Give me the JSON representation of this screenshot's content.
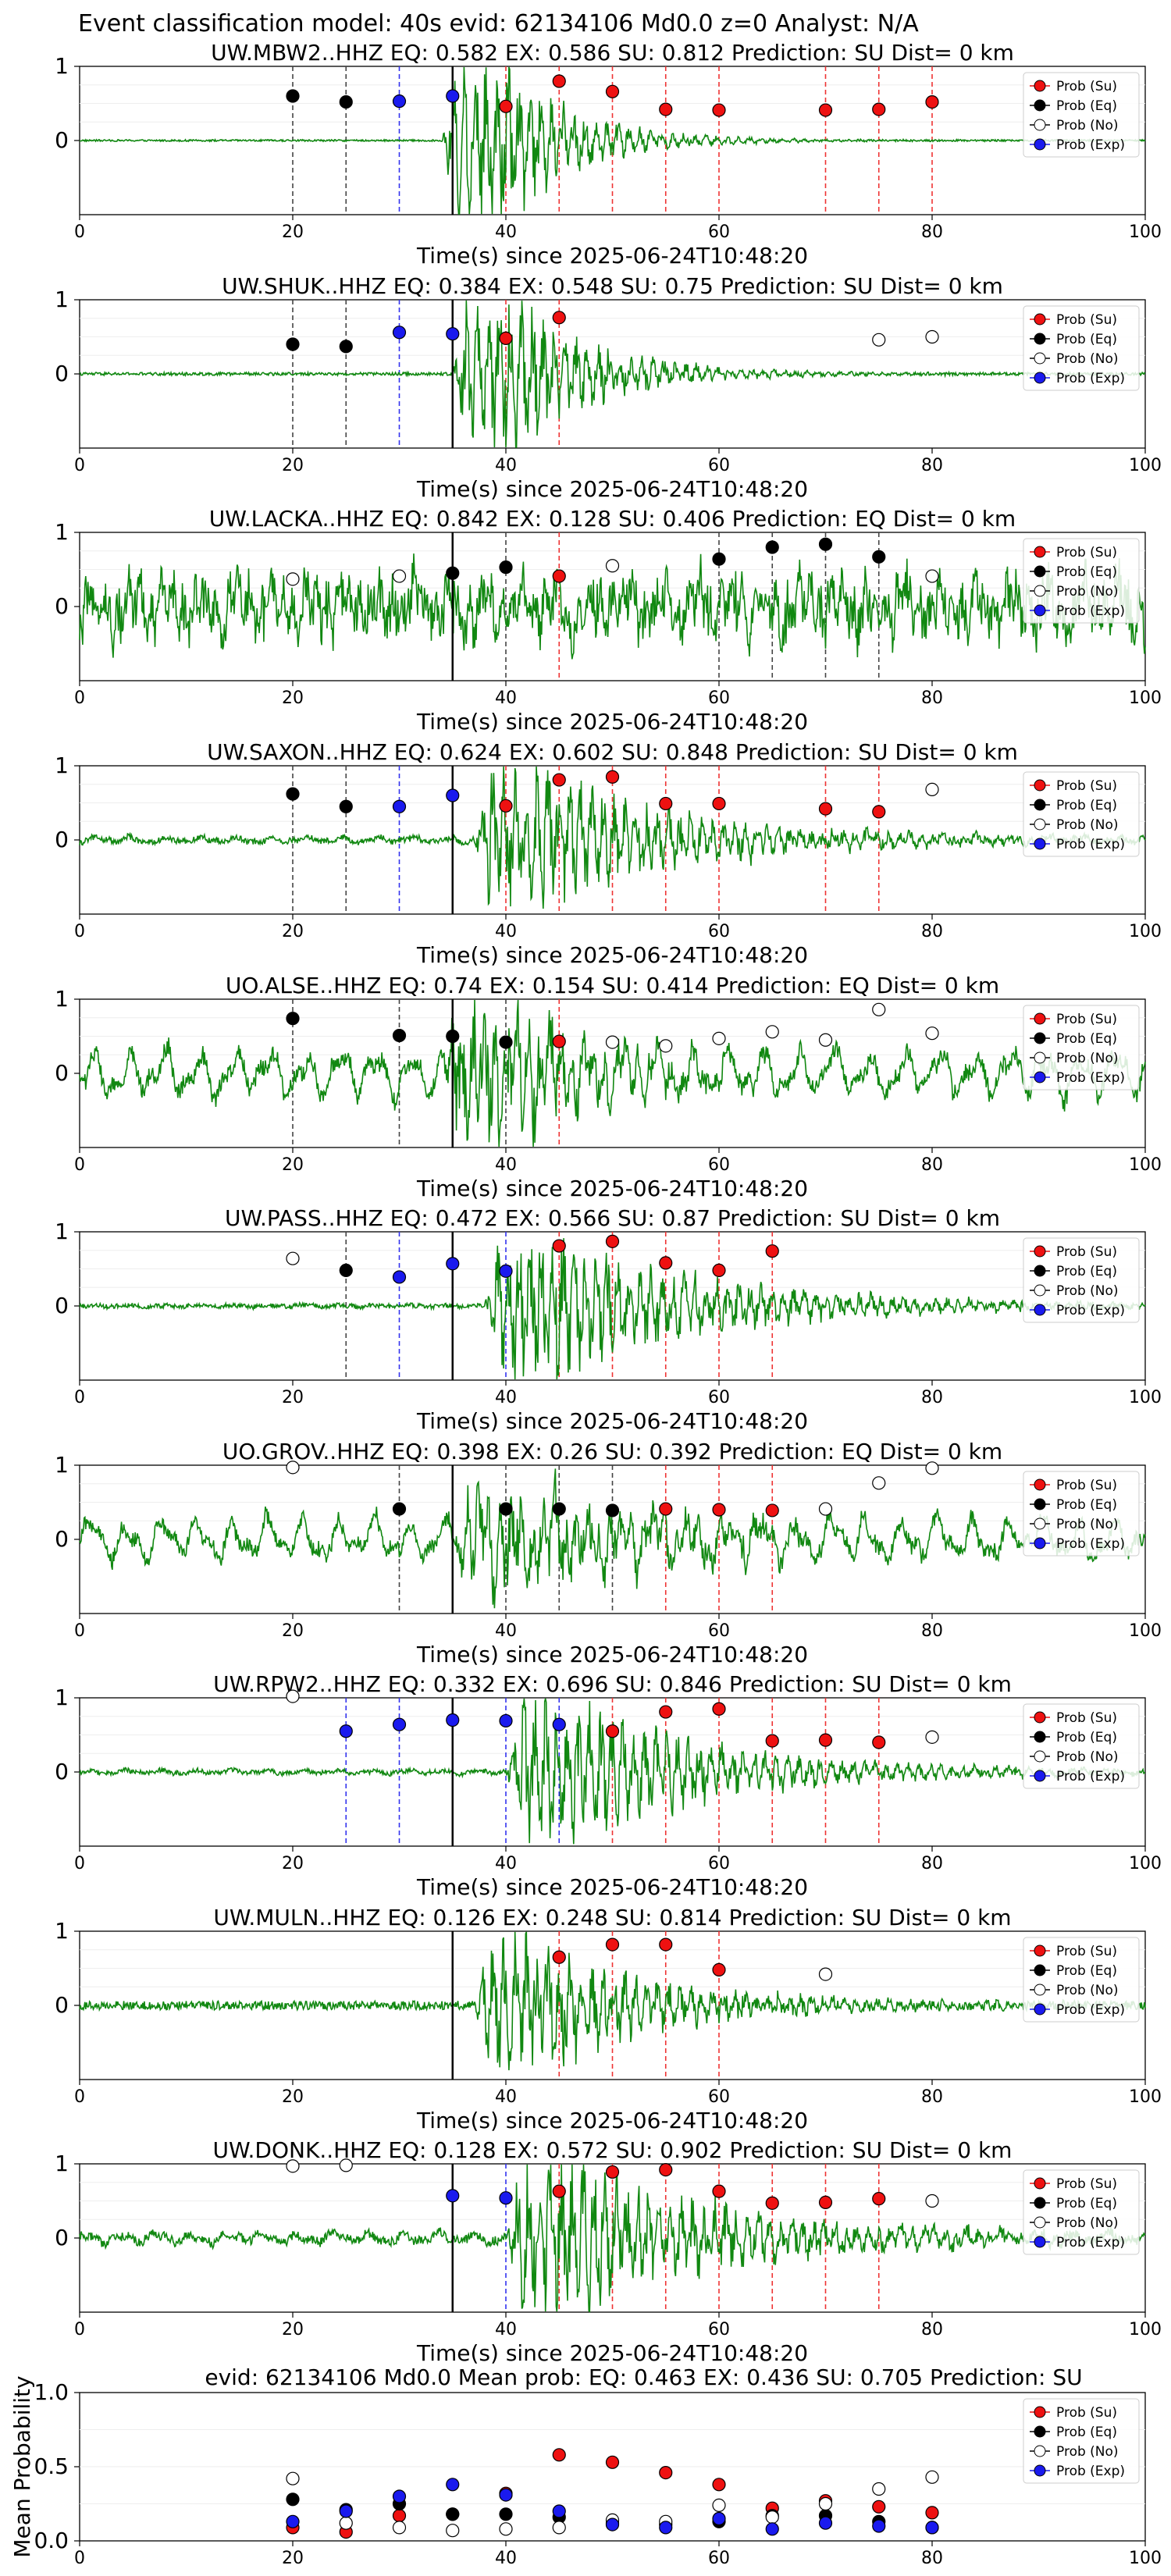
{
  "figure": {
    "title": "Event classification model: 40s evid: 62134106 Md0.0 z=0 Analyst: N/A",
    "legend_labels": [
      "Prob (Su)",
      "Prob (Eq)",
      "Prob (No)",
      "Prob (Exp)"
    ],
    "colors": {
      "su": "#ee1111",
      "eq": "#000000",
      "no": "#ffffff",
      "exp": "#1a1aee",
      "waveform": "#118811",
      "su_line": "#ee3333",
      "eq_line": "#444444",
      "exp_line": "#3333ee",
      "onset_line": "#000000"
    }
  },
  "chart_data": [
    {
      "type": "scatter",
      "station": "UW.MBW2..HHZ",
      "title": "UW.MBW2..HHZ   EQ: 0.582  EX: 0.586  SU: 0.812   Prediction: SU    Dist= 0 km",
      "xlabel": "Time(s) since 2025-06-24T10:48:20",
      "xlim": [
        0,
        100
      ],
      "ylim": [
        -1,
        1
      ],
      "xticks": [
        "0",
        "20",
        "40",
        "60",
        "80",
        "100"
      ],
      "yticks": [
        "1",
        "0"
      ],
      "onset": 35,
      "wave_start": 34,
      "wave_amp": 1.05,
      "noise": 0.012,
      "decay": 7,
      "bg_wave": 0,
      "points": [
        {
          "x": 20,
          "y": 0.6,
          "cls": "eq"
        },
        {
          "x": 25,
          "y": 0.52,
          "cls": "eq"
        },
        {
          "x": 30,
          "y": 0.53,
          "cls": "exp"
        },
        {
          "x": 35,
          "y": 0.6,
          "cls": "exp"
        },
        {
          "x": 40,
          "y": 0.46,
          "cls": "su"
        },
        {
          "x": 45,
          "y": 0.8,
          "cls": "su"
        },
        {
          "x": 50,
          "y": 0.66,
          "cls": "su"
        },
        {
          "x": 55,
          "y": 0.42,
          "cls": "su"
        },
        {
          "x": 60,
          "y": 0.41,
          "cls": "su"
        },
        {
          "x": 70,
          "y": 0.41,
          "cls": "su"
        },
        {
          "x": 75,
          "y": 0.42,
          "cls": "su"
        },
        {
          "x": 80,
          "y": 0.52,
          "cls": "su"
        }
      ]
    },
    {
      "type": "scatter",
      "station": "UW.SHUK..HHZ",
      "title": "UW.SHUK..HHZ   EQ: 0.384  EX: 0.548  SU: 0.75   Prediction: SU    Dist= 0 km",
      "xlabel": "Time(s) since 2025-06-24T10:48:20",
      "xlim": [
        0,
        100
      ],
      "ylim": [
        -1,
        1
      ],
      "xticks": [
        "0",
        "20",
        "40",
        "60",
        "80",
        "100"
      ],
      "yticks": [
        "1",
        "0"
      ],
      "onset": 35,
      "wave_start": 35,
      "wave_amp": 1.0,
      "noise": 0.02,
      "decay": 8,
      "bg_wave": 0,
      "points": [
        {
          "x": 20,
          "y": 0.4,
          "cls": "eq"
        },
        {
          "x": 25,
          "y": 0.37,
          "cls": "eq"
        },
        {
          "x": 30,
          "y": 0.56,
          "cls": "exp"
        },
        {
          "x": 35,
          "y": 0.54,
          "cls": "exp"
        },
        {
          "x": 40,
          "y": 0.48,
          "cls": "su"
        },
        {
          "x": 45,
          "y": 0.76,
          "cls": "su"
        },
        {
          "x": 75,
          "y": 0.46,
          "cls": "no"
        },
        {
          "x": 80,
          "y": 0.5,
          "cls": "no"
        }
      ]
    },
    {
      "type": "scatter",
      "station": "UW.LACKA..HHZ",
      "title": "UW.LACKA..HHZ   EQ: 0.842  EX: 0.128  SU: 0.406   Prediction: EQ    Dist= 0 km",
      "xlabel": "Time(s) since 2025-06-24T10:48:20",
      "xlim": [
        0,
        100
      ],
      "ylim": [
        -1,
        1
      ],
      "xticks": [
        "0",
        "20",
        "40",
        "60",
        "80",
        "100"
      ],
      "yticks": [
        "1",
        "0"
      ],
      "onset": 35,
      "wave_start": 0,
      "wave_amp": 0.5,
      "noise": 0.25,
      "decay": 0,
      "bg_wave": 0.35,
      "points": [
        {
          "x": 20,
          "y": 0.37,
          "cls": "no"
        },
        {
          "x": 30,
          "y": 0.41,
          "cls": "no"
        },
        {
          "x": 35,
          "y": 0.45,
          "cls": "eq"
        },
        {
          "x": 40,
          "y": 0.53,
          "cls": "eq"
        },
        {
          "x": 45,
          "y": 0.41,
          "cls": "su"
        },
        {
          "x": 50,
          "y": 0.55,
          "cls": "no"
        },
        {
          "x": 60,
          "y": 0.64,
          "cls": "eq"
        },
        {
          "x": 65,
          "y": 0.8,
          "cls": "eq"
        },
        {
          "x": 70,
          "y": 0.84,
          "cls": "eq"
        },
        {
          "x": 75,
          "y": 0.67,
          "cls": "eq"
        },
        {
          "x": 80,
          "y": 0.41,
          "cls": "no"
        }
      ]
    },
    {
      "type": "scatter",
      "station": "UW.SAXON..HHZ",
      "title": "UW.SAXON..HHZ   EQ: 0.624  EX: 0.602  SU: 0.848   Prediction: SU    Dist= 0 km",
      "xlabel": "Time(s) since 2025-06-24T10:48:20",
      "xlim": [
        0,
        100
      ],
      "ylim": [
        -1,
        1
      ],
      "xticks": [
        "0",
        "20",
        "40",
        "60",
        "80",
        "100"
      ],
      "yticks": [
        "1",
        "0"
      ],
      "onset": 35,
      "wave_start": 37,
      "wave_amp": 0.95,
      "noise": 0.04,
      "decay": 14,
      "bg_wave": 0.06,
      "points": [
        {
          "x": 20,
          "y": 0.62,
          "cls": "eq"
        },
        {
          "x": 25,
          "y": 0.45,
          "cls": "eq"
        },
        {
          "x": 30,
          "y": 0.45,
          "cls": "exp"
        },
        {
          "x": 35,
          "y": 0.6,
          "cls": "exp"
        },
        {
          "x": 40,
          "y": 0.46,
          "cls": "su"
        },
        {
          "x": 45,
          "y": 0.81,
          "cls": "su"
        },
        {
          "x": 50,
          "y": 0.85,
          "cls": "su"
        },
        {
          "x": 55,
          "y": 0.49,
          "cls": "su"
        },
        {
          "x": 60,
          "y": 0.49,
          "cls": "su"
        },
        {
          "x": 70,
          "y": 0.42,
          "cls": "su"
        },
        {
          "x": 75,
          "y": 0.38,
          "cls": "su"
        },
        {
          "x": 80,
          "y": 0.68,
          "cls": "no"
        }
      ]
    },
    {
      "type": "scatter",
      "station": "UO.ALSE..HHZ",
      "title": "UO.ALSE..HHZ   EQ: 0.74  EX: 0.154  SU: 0.414   Prediction: EQ    Dist= 0 km",
      "xlabel": "Time(s) since 2025-06-24T10:48:20",
      "xlim": [
        0,
        100
      ],
      "ylim": [
        -1,
        1
      ],
      "xticks": [
        "0",
        "20",
        "40",
        "60",
        "80",
        "100"
      ],
      "yticks": [
        "1",
        "0"
      ],
      "onset": 35,
      "wave_start": 34,
      "wave_amp": 0.85,
      "noise": 0.12,
      "decay": 10,
      "bg_wave": 0.45,
      "points": [
        {
          "x": 20,
          "y": 0.74,
          "cls": "eq"
        },
        {
          "x": 30,
          "y": 0.51,
          "cls": "eq"
        },
        {
          "x": 35,
          "y": 0.5,
          "cls": "eq"
        },
        {
          "x": 40,
          "y": 0.42,
          "cls": "eq"
        },
        {
          "x": 45,
          "y": 0.43,
          "cls": "su"
        },
        {
          "x": 50,
          "y": 0.42,
          "cls": "no"
        },
        {
          "x": 55,
          "y": 0.37,
          "cls": "no"
        },
        {
          "x": 60,
          "y": 0.47,
          "cls": "no"
        },
        {
          "x": 65,
          "y": 0.56,
          "cls": "no"
        },
        {
          "x": 70,
          "y": 0.45,
          "cls": "no"
        },
        {
          "x": 75,
          "y": 0.86,
          "cls": "no"
        },
        {
          "x": 80,
          "y": 0.54,
          "cls": "no"
        }
      ]
    },
    {
      "type": "scatter",
      "station": "UW.PASS..HHZ",
      "title": "UW.PASS..HHZ   EQ: 0.472  EX: 0.566  SU: 0.87   Prediction: SU    Dist= 0 km",
      "xlabel": "Time(s) since 2025-06-24T10:48:20",
      "xlim": [
        0,
        100
      ],
      "ylim": [
        -1,
        1
      ],
      "xticks": [
        "0",
        "20",
        "40",
        "60",
        "80",
        "100"
      ],
      "yticks": [
        "1",
        "0"
      ],
      "onset": 35,
      "wave_start": 38,
      "wave_amp": 0.95,
      "noise": 0.03,
      "decay": 16,
      "bg_wave": 0.02,
      "points": [
        {
          "x": 20,
          "y": 0.64,
          "cls": "no"
        },
        {
          "x": 25,
          "y": 0.48,
          "cls": "eq"
        },
        {
          "x": 30,
          "y": 0.39,
          "cls": "exp"
        },
        {
          "x": 35,
          "y": 0.57,
          "cls": "exp"
        },
        {
          "x": 40,
          "y": 0.47,
          "cls": "exp"
        },
        {
          "x": 45,
          "y": 0.81,
          "cls": "su"
        },
        {
          "x": 50,
          "y": 0.87,
          "cls": "su"
        },
        {
          "x": 55,
          "y": 0.58,
          "cls": "su"
        },
        {
          "x": 60,
          "y": 0.48,
          "cls": "su"
        },
        {
          "x": 65,
          "y": 0.74,
          "cls": "su"
        }
      ]
    },
    {
      "type": "scatter",
      "station": "UO.GROV..HHZ",
      "title": "UO.GROV..HHZ   EQ: 0.398  EX: 0.26  SU: 0.392   Prediction: EQ    Dist= 0 km",
      "xlabel": "Time(s) since 2025-06-24T10:48:20",
      "xlim": [
        0,
        100
      ],
      "ylim": [
        -1,
        1
      ],
      "xticks": [
        "0",
        "20",
        "40",
        "60",
        "80",
        "100"
      ],
      "yticks": [
        "1",
        "0"
      ],
      "onset": 35,
      "wave_start": 35,
      "wave_amp": 0.6,
      "noise": 0.1,
      "decay": 18,
      "bg_wave": 0.4,
      "points": [
        {
          "x": 20,
          "y": 0.97,
          "cls": "no"
        },
        {
          "x": 30,
          "y": 0.41,
          "cls": "eq"
        },
        {
          "x": 40,
          "y": 0.41,
          "cls": "eq"
        },
        {
          "x": 45,
          "y": 0.41,
          "cls": "eq"
        },
        {
          "x": 50,
          "y": 0.39,
          "cls": "eq"
        },
        {
          "x": 55,
          "y": 0.41,
          "cls": "su"
        },
        {
          "x": 60,
          "y": 0.4,
          "cls": "su"
        },
        {
          "x": 65,
          "y": 0.39,
          "cls": "su"
        },
        {
          "x": 70,
          "y": 0.41,
          "cls": "no"
        },
        {
          "x": 75,
          "y": 0.76,
          "cls": "no"
        },
        {
          "x": 80,
          "y": 0.96,
          "cls": "no"
        }
      ]
    },
    {
      "type": "scatter",
      "station": "UW.RPW2..HHZ",
      "title": "UW.RPW2..HHZ   EQ: 0.332  EX: 0.696  SU: 0.846   Prediction: SU    Dist= 0 km",
      "xlabel": "Time(s) since 2025-06-24T10:48:20",
      "xlim": [
        0,
        100
      ],
      "ylim": [
        -1,
        1
      ],
      "xticks": [
        "0",
        "20",
        "40",
        "60",
        "80",
        "100"
      ],
      "yticks": [
        "1",
        "0"
      ],
      "onset": 35,
      "wave_start": 40,
      "wave_amp": 0.9,
      "noise": 0.03,
      "decay": 15,
      "bg_wave": 0.04,
      "points": [
        {
          "x": 20,
          "y": 1.02,
          "cls": "no"
        },
        {
          "x": 25,
          "y": 0.55,
          "cls": "exp"
        },
        {
          "x": 30,
          "y": 0.64,
          "cls": "exp"
        },
        {
          "x": 35,
          "y": 0.7,
          "cls": "exp"
        },
        {
          "x": 40,
          "y": 0.69,
          "cls": "exp"
        },
        {
          "x": 45,
          "y": 0.64,
          "cls": "exp"
        },
        {
          "x": 50,
          "y": 0.55,
          "cls": "su"
        },
        {
          "x": 55,
          "y": 0.81,
          "cls": "su"
        },
        {
          "x": 60,
          "y": 0.85,
          "cls": "su"
        },
        {
          "x": 65,
          "y": 0.42,
          "cls": "su"
        },
        {
          "x": 70,
          "y": 0.43,
          "cls": "su"
        },
        {
          "x": 75,
          "y": 0.4,
          "cls": "su"
        },
        {
          "x": 80,
          "y": 0.47,
          "cls": "no"
        }
      ]
    },
    {
      "type": "scatter",
      "station": "UW.MULN..HHZ",
      "title": "UW.MULN..HHZ   EQ: 0.126  EX: 0.248  SU: 0.814   Prediction: SU    Dist= 0 km",
      "xlabel": "Time(s) since 2025-06-24T10:48:20",
      "xlim": [
        0,
        100
      ],
      "ylim": [
        -1,
        1
      ],
      "xticks": [
        "0",
        "20",
        "40",
        "60",
        "80",
        "100"
      ],
      "yticks": [
        "1",
        "0"
      ],
      "onset": 35,
      "wave_start": 37,
      "wave_amp": 0.9,
      "noise": 0.06,
      "decay": 12,
      "bg_wave": 0,
      "points": [
        {
          "x": 45,
          "y": 0.65,
          "cls": "su"
        },
        {
          "x": 50,
          "y": 0.82,
          "cls": "su"
        },
        {
          "x": 55,
          "y": 0.82,
          "cls": "su"
        },
        {
          "x": 60,
          "y": 0.48,
          "cls": "su"
        },
        {
          "x": 70,
          "y": 0.42,
          "cls": "no"
        }
      ]
    },
    {
      "type": "scatter",
      "station": "UW.DONK..HHZ",
      "title": "UW.DONK..HHZ   EQ: 0.128  EX: 0.572  SU: 0.902   Prediction: SU    Dist= 0 km",
      "xlabel": "Time(s) since 2025-06-24T10:48:20",
      "xlim": [
        0,
        100
      ],
      "ylim": [
        -1,
        1
      ],
      "xticks": [
        "0",
        "20",
        "40",
        "60",
        "80",
        "100"
      ],
      "yticks": [
        "1",
        "0"
      ],
      "onset": 35,
      "wave_start": 40,
      "wave_amp": 1.0,
      "noise": 0.06,
      "decay": 16,
      "bg_wave": 0.1,
      "points": [
        {
          "x": 20,
          "y": 0.97,
          "cls": "no"
        },
        {
          "x": 25,
          "y": 0.98,
          "cls": "no"
        },
        {
          "x": 35,
          "y": 0.57,
          "cls": "exp"
        },
        {
          "x": 40,
          "y": 0.54,
          "cls": "exp"
        },
        {
          "x": 45,
          "y": 0.63,
          "cls": "su"
        },
        {
          "x": 50,
          "y": 0.89,
          "cls": "su"
        },
        {
          "x": 55,
          "y": 0.92,
          "cls": "su"
        },
        {
          "x": 60,
          "y": 0.63,
          "cls": "su"
        },
        {
          "x": 65,
          "y": 0.47,
          "cls": "su"
        },
        {
          "x": 70,
          "y": 0.48,
          "cls": "su"
        },
        {
          "x": 75,
          "y": 0.53,
          "cls": "su"
        },
        {
          "x": 80,
          "y": 0.5,
          "cls": "no"
        }
      ]
    },
    {
      "type": "scatter",
      "station": "mean",
      "title": "evid: 62134106  Md0.0   Mean prob:   EQ: 0.463  EX: 0.436  SU: 0.705   Prediction: SU",
      "xlabel": "",
      "ylabel": "Mean Probability",
      "xlim": [
        0,
        100
      ],
      "ylim": [
        0,
        1
      ],
      "xticks": [
        "0",
        "20",
        "40",
        "60",
        "80",
        "100"
      ],
      "yticks": [
        "1.0",
        "0.5",
        "0.0"
      ],
      "series": [
        {
          "cls": "su",
          "x": [
            20,
            25,
            30,
            35,
            40,
            45,
            50,
            55,
            60,
            65,
            70,
            75,
            80
          ],
          "y": [
            0.09,
            0.06,
            0.17,
            0.18,
            0.32,
            0.58,
            0.53,
            0.46,
            0.38,
            0.22,
            0.27,
            0.23,
            0.19
          ]
        },
        {
          "cls": "eq",
          "x": [
            20,
            25,
            30,
            35,
            40,
            45,
            50,
            55,
            60,
            65,
            70,
            75,
            80
          ],
          "y": [
            0.28,
            0.21,
            0.25,
            0.18,
            0.18,
            0.16,
            0.12,
            0.11,
            0.13,
            0.17,
            0.17,
            0.13,
            0.09
          ]
        },
        {
          "cls": "no",
          "x": [
            20,
            25,
            30,
            35,
            40,
            45,
            50,
            55,
            60,
            65,
            70,
            75,
            80
          ],
          "y": [
            0.42,
            0.12,
            0.09,
            0.07,
            0.08,
            0.09,
            0.14,
            0.13,
            0.24,
            0.16,
            0.25,
            0.35,
            0.43
          ]
        },
        {
          "cls": "exp",
          "x": [
            20,
            25,
            30,
            35,
            40,
            45,
            50,
            55,
            60,
            65,
            70,
            75,
            80
          ],
          "y": [
            0.13,
            0.2,
            0.3,
            0.38,
            0.31,
            0.2,
            0.11,
            0.09,
            0.15,
            0.08,
            0.12,
            0.1,
            0.09
          ]
        }
      ]
    }
  ]
}
